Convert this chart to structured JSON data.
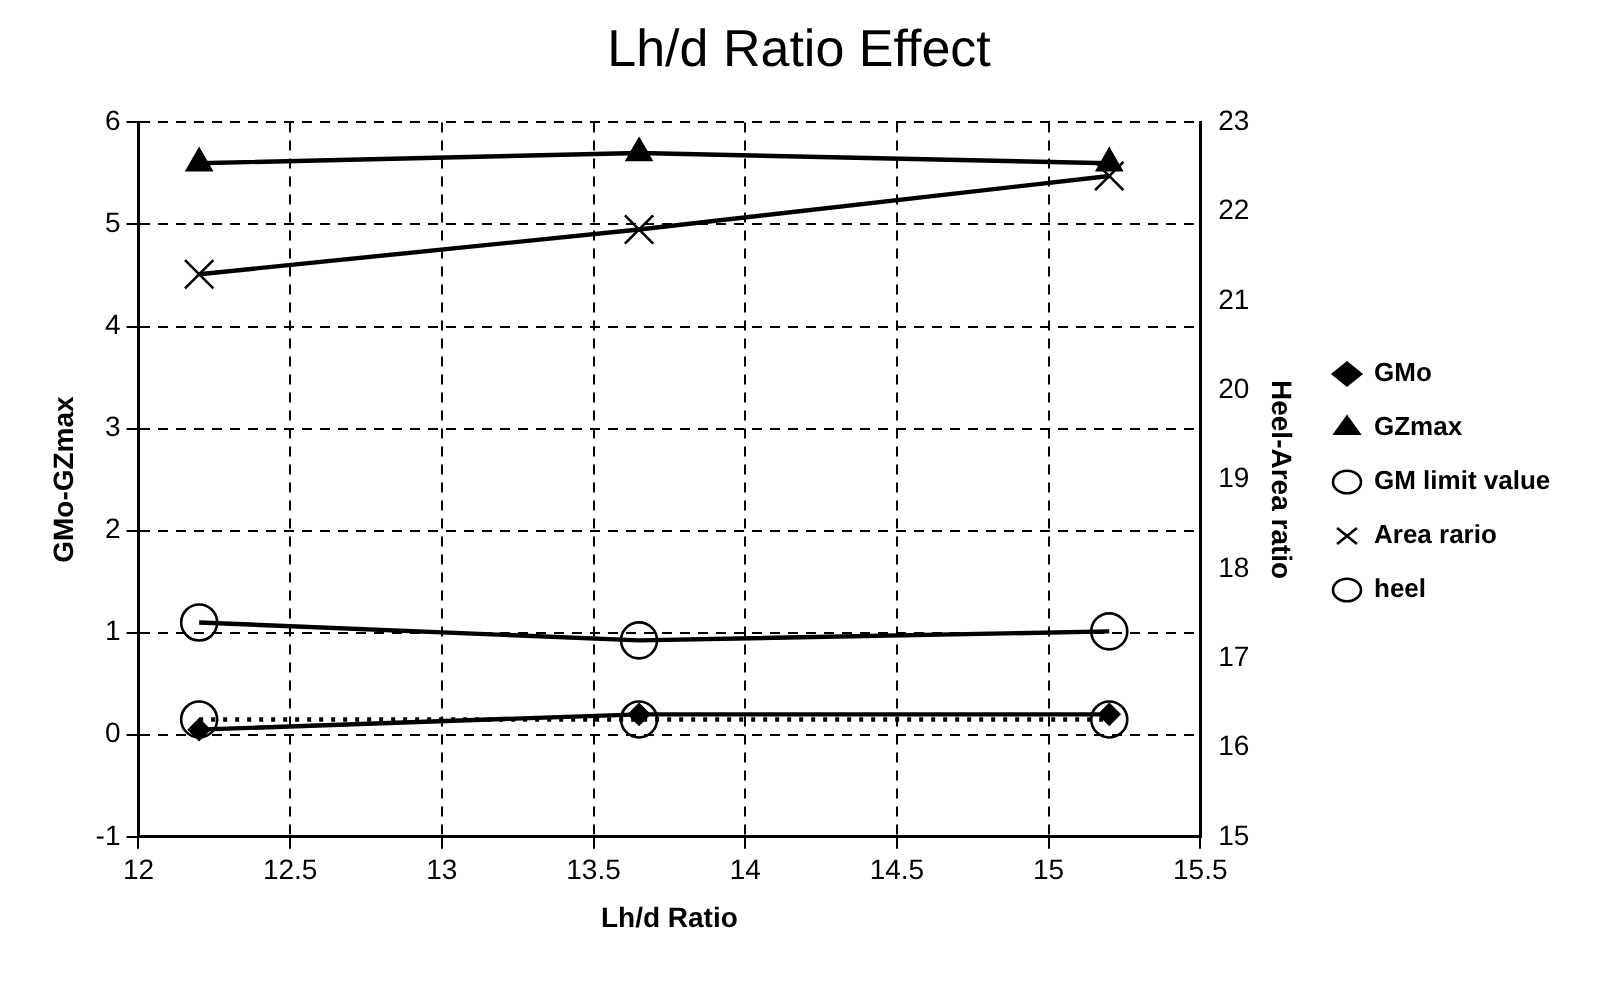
{
  "chart_data": {
    "type": "line",
    "title": "Lh/d Ratio Effect",
    "xlabel": "Lh/d Ratio",
    "ylabel": "GMo-GZmax",
    "y2label": "Heel-Area ratio",
    "x": [
      12.2,
      13.65,
      15.2
    ],
    "series": [
      {
        "name": "GMo",
        "color": "#000000",
        "marker": "diamond",
        "values": [
          0.05,
          0.2,
          0.2
        ]
      },
      {
        "name": "GZmax",
        "color": "#000000",
        "marker": "triangle",
        "values": [
          5.6,
          5.7,
          5.6
        ]
      },
      {
        "name": "GM limit value",
        "color": "#000000",
        "marker": "circle",
        "line_style": "dotted",
        "values": [
          0.15,
          0.15,
          0.15
        ]
      },
      {
        "name": "Area rario",
        "color": "#000000",
        "marker": "cross",
        "axis": "y2",
        "values": [
          21.3,
          21.8,
          22.4
        ]
      },
      {
        "name": "heel",
        "color": "#000000",
        "marker": "circle",
        "axis": "y2",
        "values": [
          17.4,
          17.2,
          17.3
        ]
      }
    ],
    "xlim": [
      12,
      15.5
    ],
    "xticks": [
      12,
      12.5,
      13,
      13.5,
      14,
      14.5,
      15,
      15.5
    ],
    "ylim": [
      -1,
      6
    ],
    "yticks": [
      -1,
      0,
      1,
      2,
      3,
      4,
      5,
      6
    ],
    "y2lim": [
      15,
      23
    ],
    "y2ticks": [
      15,
      16,
      17,
      18,
      19,
      20,
      21,
      22,
      23
    ],
    "grid": true,
    "legend": "right"
  }
}
